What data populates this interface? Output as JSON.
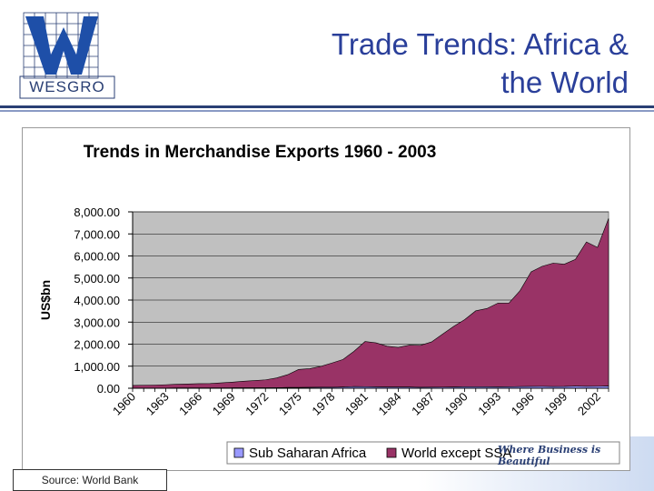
{
  "header": {
    "logo_text": "WESGRO",
    "title_line1": "Trade Trends: Africa &",
    "title_line2": "the World"
  },
  "footer": {
    "source": "Source: World Bank",
    "tagline": "Where Business is Beautiful"
  },
  "chart_data": {
    "type": "area",
    "title": "Trends in Merchandise Exports 1960 - 2003",
    "xlabel": "",
    "ylabel": "US$bn",
    "ylim": [
      0,
      8000
    ],
    "yticks": [
      "0.00",
      "1,000.00",
      "2,000.00",
      "3,000.00",
      "4,000.00",
      "5,000.00",
      "6,000.00",
      "7,000.00",
      "8,000.00"
    ],
    "xtick_labels": [
      "1960",
      "1963",
      "1966",
      "1969",
      "1972",
      "1975",
      "1978",
      "1981",
      "1984",
      "1987",
      "1990",
      "1993",
      "1996",
      "1999",
      "2002"
    ],
    "x": [
      1960,
      1961,
      1962,
      1963,
      1964,
      1965,
      1966,
      1967,
      1968,
      1969,
      1970,
      1971,
      1972,
      1973,
      1974,
      1975,
      1976,
      1977,
      1978,
      1979,
      1980,
      1981,
      1982,
      1983,
      1984,
      1985,
      1986,
      1987,
      1988,
      1989,
      1990,
      1991,
      1992,
      1993,
      1994,
      1995,
      1996,
      1997,
      1998,
      1999,
      2000,
      2001,
      2002,
      2003
    ],
    "series": [
      {
        "name": "Sub Saharan Africa",
        "color": "#9999ff",
        "values": [
          8,
          9,
          9,
          10,
          11,
          12,
          13,
          13,
          14,
          16,
          18,
          19,
          21,
          25,
          35,
          33,
          38,
          43,
          45,
          55,
          75,
          70,
          60,
          55,
          55,
          55,
          45,
          50,
          52,
          55,
          65,
          62,
          65,
          60,
          65,
          75,
          80,
          82,
          75,
          78,
          95,
          85,
          88,
          100
        ]
      },
      {
        "name": "World except SSA",
        "color": "#993366",
        "values": [
          120,
          130,
          135,
          150,
          170,
          180,
          195,
          200,
          230,
          260,
          300,
          330,
          360,
          440,
          580,
          820,
          850,
          950,
          1100,
          1250,
          1600,
          2050,
          2000,
          1850,
          1800,
          1900,
          1900,
          2050,
          2400,
          2750,
          3050,
          3450,
          3550,
          3800,
          3800,
          4350,
          5200,
          5450,
          5600,
          5550,
          5750,
          6550,
          6300,
          7600
        ]
      }
    ],
    "legend_position": "bottom",
    "plot_background": "#c0c0c0",
    "grid": true
  }
}
